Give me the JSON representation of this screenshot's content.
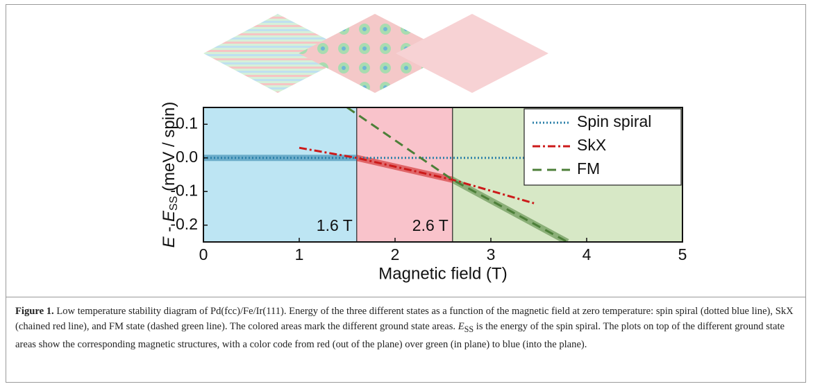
{
  "chart_data": {
    "type": "line",
    "ylabel_parts": [
      "E",
      " - ",
      "E",
      "SS",
      " (meV / spin)"
    ],
    "xlabel": "Magnetic field (T)",
    "xlim": [
      0,
      5
    ],
    "xticks": [
      0,
      1,
      2,
      3,
      4,
      5
    ],
    "ylim": [
      -0.25,
      0.15
    ],
    "yticks": [
      {
        "value": -0.2,
        "label": "-0.2"
      },
      {
        "value": -0.1,
        "label": "-0.1"
      },
      {
        "value": 0,
        "label": "0.0"
      },
      {
        "value": 0.1,
        "label": "0.1"
      }
    ],
    "regions": [
      {
        "x0": 0,
        "x1": 1.6,
        "color": "#bde5f3"
      },
      {
        "x0": 1.6,
        "x1": 2.6,
        "color": "#f9c3cb"
      },
      {
        "x0": 2.6,
        "x1": 5,
        "color": "#d7e8c6"
      }
    ],
    "annotations": [
      "1.6 T",
      "2.6 T"
    ],
    "legend": "upper right",
    "series": [
      {
        "name": "Spin spiral",
        "color": "#2a7fa8",
        "style": "dotted",
        "x": [
          0,
          5
        ],
        "values": [
          0,
          0
        ]
      },
      {
        "name": "SkX",
        "color": "#cc1a1a",
        "style": "dashdot",
        "x": [
          1,
          1.6,
          2.6,
          3.45
        ],
        "values": [
          0.03,
          0,
          -0.065,
          -0.135
        ]
      },
      {
        "name": "FM",
        "color": "#4c7f38",
        "style": "dashed",
        "x": [
          1.5,
          2.6,
          3.8
        ],
        "values": [
          0.15,
          -0.065,
          -0.25
        ]
      }
    ]
  },
  "caption": {
    "label": "Figure 1.",
    "text": " Low temperature stability diagram of Pd(fcc)/Fe/Ir(111). Energy of the three different states as a function of the magnetic field at zero temperature: spin spiral (dotted blue line), SkX (chained red line), and FM state (dashed green line). The colored areas mark the different ground state areas. ",
    "symbol": "E",
    "subscript": "SS",
    "text_end": " is the energy of the spin spiral. The plots on top of the different ground state areas show the corresponding magnetic structures, with a color code from red (out of the plane) over green (in plane) to blue (into the plane)."
  }
}
